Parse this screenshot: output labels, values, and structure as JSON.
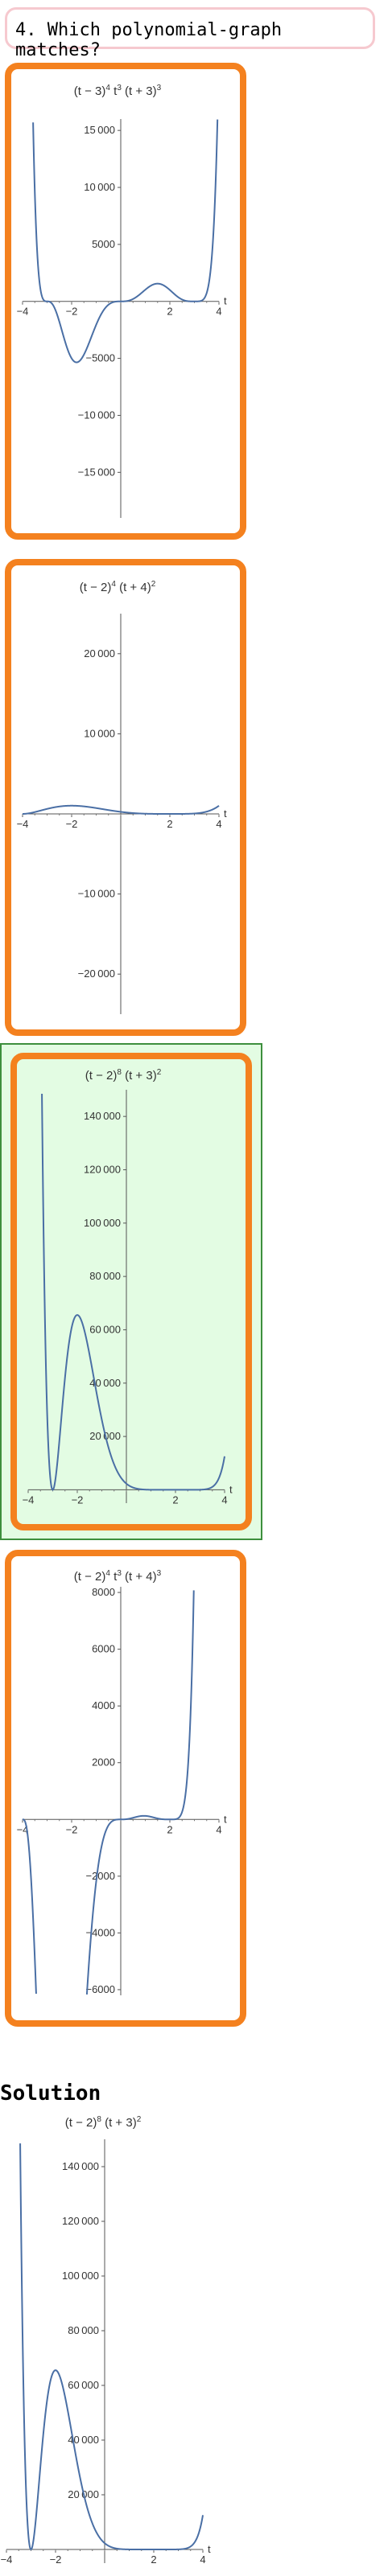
{
  "question": {
    "label": "4. Which polynomial-graph matches?"
  },
  "solution": {
    "heading": "Solution"
  },
  "colors": {
    "card_border": "#f4811f",
    "selected_bg": "#e3fce3",
    "curve": "#4a6fa5",
    "header_border": "#f6c9cf"
  },
  "options": [
    {
      "title_parts": [
        "(t − 3)",
        "4",
        " t",
        "3",
        " (t + 3)",
        "3"
      ],
      "selected": false
    },
    {
      "title_parts": [
        "(t − 2)",
        "4",
        " (t + 4)",
        "2",
        "",
        ""
      ],
      "selected": false
    },
    {
      "title_parts": [
        "(t − 2)",
        "8",
        " (t + 3)",
        "2",
        "",
        ""
      ],
      "selected": true
    },
    {
      "title_parts": [
        "(t − 2)",
        "4",
        " t",
        "3",
        " (t + 4)",
        "3"
      ],
      "selected": false
    }
  ],
  "chart_data": [
    {
      "type": "line",
      "function": "(t-3)^4 t^3 (t+3)^3",
      "xlabel": "t",
      "xlim": [
        -4,
        4
      ],
      "ylim": [
        -19000,
        16000
      ],
      "xticks": [
        -4,
        -2,
        2,
        4
      ],
      "yticks": [
        -15000,
        -10000,
        -5000,
        5000,
        10000,
        15000
      ]
    },
    {
      "type": "line",
      "function": "(t-2)^4 (t+4)^2",
      "xlabel": "t",
      "xlim": [
        -4,
        4
      ],
      "ylim": [
        -25000,
        25000
      ],
      "xticks": [
        -4,
        -2,
        2,
        4
      ],
      "yticks": [
        -20000,
        -10000,
        10000,
        20000
      ]
    },
    {
      "type": "line",
      "function": "(t-2)^8 (t+3)^2",
      "xlabel": "t",
      "xlim": [
        -4,
        4
      ],
      "ylim": [
        -5000,
        150000
      ],
      "xticks": [
        -4,
        -2,
        2,
        4
      ],
      "yticks": [
        20000,
        40000,
        60000,
        80000,
        100000,
        120000,
        140000
      ]
    },
    {
      "type": "line",
      "function": "(t-2)^4 t^3 (t+4)^3",
      "xlabel": "t",
      "xlim": [
        -4,
        4
      ],
      "ylim": [
        -6200,
        8200
      ],
      "xticks": [
        -4,
        -2,
        2,
        4
      ],
      "yticks": [
        -6000,
        -4000,
        -2000,
        2000,
        4000,
        6000,
        8000
      ]
    },
    {
      "type": "line",
      "function": "(t-2)^8 (t+3)^2",
      "xlabel": "t",
      "xlim": [
        -4,
        4
      ],
      "ylim": [
        -5000,
        150000
      ],
      "xticks": [
        -4,
        -2,
        2,
        4
      ],
      "yticks": [
        20000,
        40000,
        60000,
        80000,
        100000,
        120000,
        140000
      ]
    }
  ]
}
